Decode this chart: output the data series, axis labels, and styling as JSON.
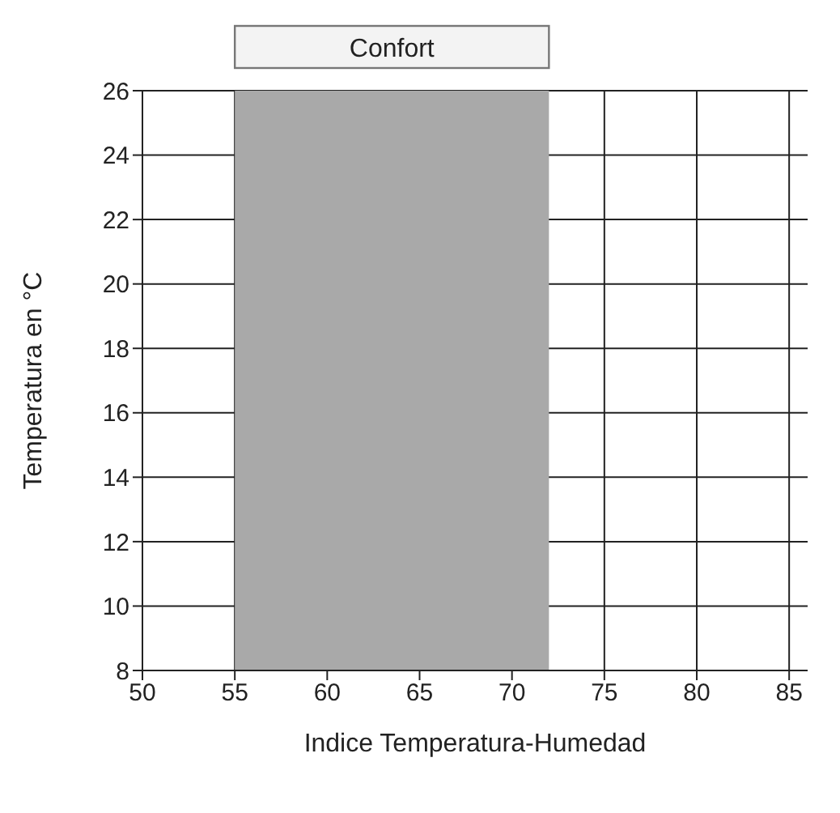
{
  "chart_data": {
    "type": "area",
    "xlabel": "Indice Temperatura-Humedad",
    "ylabel": "Temperatura en °C",
    "xlim": [
      50,
      86
    ],
    "xticks": [
      50,
      55,
      60,
      65,
      70,
      75,
      80,
      85
    ],
    "ylim": [
      8,
      26
    ],
    "yticks": [
      8,
      10,
      12,
      14,
      16,
      18,
      20,
      22,
      24,
      26
    ],
    "series": [
      {
        "name": "Confort",
        "color": "#a9a9a9",
        "x": [
          55,
          72
        ],
        "values": [
          26,
          26
        ]
      }
    ],
    "grid": true
  }
}
